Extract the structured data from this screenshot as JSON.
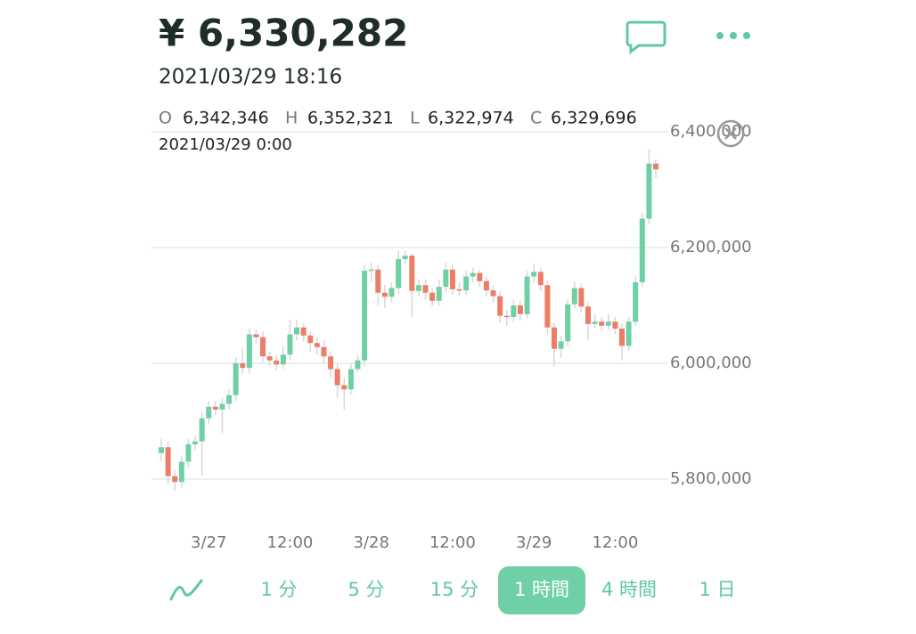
{
  "header": {
    "price": "¥ 6,330,282",
    "datetime": "2021/03/29 18:16"
  },
  "ohlc": {
    "o_label": "O",
    "o": "6,342,346",
    "h_label": "H",
    "h": "6,352,321",
    "l_label": "L",
    "l": "6,322,974",
    "c_label": "C",
    "c": "6,329,696",
    "time": "2021/03/29 0:00"
  },
  "tabs": {
    "items": [
      "1 分",
      "5 分",
      "15 分",
      "1 時間",
      "4 時間",
      "1 日"
    ],
    "selected": 3
  },
  "chart_data": {
    "type": "candlestick",
    "up_color": "#6fd0a6",
    "down_color": "#ec7d68",
    "ylim": [
      5800000,
      6400000
    ],
    "yticks": [
      {
        "value": 5800000,
        "label": "5,800,000"
      },
      {
        "value": 6000000,
        "label": "6,000,000"
      },
      {
        "value": 6200000,
        "label": "6,200,000"
      },
      {
        "value": 6400000,
        "label": "6,400,000"
      }
    ],
    "xlim": [
      0,
      73
    ],
    "xticks": [
      {
        "value": 7,
        "label": "3/27"
      },
      {
        "value": 19,
        "label": "12:00"
      },
      {
        "value": 31,
        "label": "3/28"
      },
      {
        "value": 43,
        "label": "12:00"
      },
      {
        "value": 55,
        "label": "3/29"
      },
      {
        "value": 67,
        "label": "12:00"
      }
    ],
    "grid": true,
    "candles": [
      [
        5845000,
        5870000,
        5830000,
        5855000
      ],
      [
        5855000,
        5865000,
        5790000,
        5805000
      ],
      [
        5805000,
        5815000,
        5780000,
        5795000
      ],
      [
        5795000,
        5840000,
        5785000,
        5830000
      ],
      [
        5830000,
        5870000,
        5820000,
        5860000
      ],
      [
        5860000,
        5875000,
        5850000,
        5865000
      ],
      [
        5865000,
        5915000,
        5805000,
        5905000
      ],
      [
        5905000,
        5935000,
        5895000,
        5925000
      ],
      [
        5925000,
        5935000,
        5910000,
        5920000
      ],
      [
        5920000,
        5940000,
        5880000,
        5930000
      ],
      [
        5930000,
        5955000,
        5920000,
        5945000
      ],
      [
        5945000,
        6010000,
        5935000,
        6000000
      ],
      [
        6000000,
        6025000,
        5982000,
        5992000
      ],
      [
        5992000,
        6060000,
        5982000,
        6050000
      ],
      [
        6050000,
        6058000,
        6035000,
        6045000
      ],
      [
        6045000,
        6055000,
        6002000,
        6012000
      ],
      [
        6012000,
        6020000,
        5995000,
        6005000
      ],
      [
        6005000,
        6015000,
        5988000,
        5998000
      ],
      [
        5998000,
        6030000,
        5990000,
        6015000
      ],
      [
        6015000,
        6075000,
        6005000,
        6050000
      ],
      [
        6050000,
        6075000,
        6040000,
        6062000
      ],
      [
        6062000,
        6070000,
        6038000,
        6048000
      ],
      [
        6048000,
        6055000,
        6020000,
        6035000
      ],
      [
        6035000,
        6045000,
        6015000,
        6028000
      ],
      [
        6028000,
        6040000,
        6000000,
        6012000
      ],
      [
        6012000,
        6020000,
        5975000,
        5990000
      ],
      [
        5990000,
        6000000,
        5940000,
        5962000
      ],
      [
        5962000,
        5975000,
        5920000,
        5955000
      ],
      [
        5955000,
        6000000,
        5945000,
        5990000
      ],
      [
        5990000,
        6015000,
        5985000,
        6005000
      ],
      [
        6005000,
        6170000,
        5995000,
        6160000
      ],
      [
        6160000,
        6175000,
        6140000,
        6162000
      ],
      [
        6162000,
        6170000,
        6100000,
        6122000
      ],
      [
        6122000,
        6135000,
        6095000,
        6115000
      ],
      [
        6115000,
        6140000,
        6105000,
        6130000
      ],
      [
        6130000,
        6195000,
        6120000,
        6180000
      ],
      [
        6180000,
        6195000,
        6170000,
        6186000
      ],
      [
        6186000,
        6190000,
        6080000,
        6125000
      ],
      [
        6125000,
        6145000,
        6115000,
        6135000
      ],
      [
        6135000,
        6145000,
        6110000,
        6122000
      ],
      [
        6122000,
        6130000,
        6098000,
        6108000
      ],
      [
        6108000,
        6145000,
        6100000,
        6132000
      ],
      [
        6132000,
        6175000,
        6122000,
        6162000
      ],
      [
        6162000,
        6170000,
        6118000,
        6128000
      ],
      [
        6128000,
        6140000,
        6116000,
        6126000
      ],
      [
        6126000,
        6160000,
        6118000,
        6150000
      ],
      [
        6150000,
        6165000,
        6140000,
        6156000
      ],
      [
        6156000,
        6162000,
        6132000,
        6142000
      ],
      [
        6142000,
        6150000,
        6116000,
        6126000
      ],
      [
        6126000,
        6135000,
        6105000,
        6116000
      ],
      [
        6116000,
        6125000,
        6070000,
        6082000
      ],
      [
        6082000,
        6092000,
        6065000,
        6080000
      ],
      [
        6080000,
        6110000,
        6072000,
        6100000
      ],
      [
        6100000,
        6108000,
        6075000,
        6085000
      ],
      [
        6085000,
        6160000,
        6078000,
        6150000
      ],
      [
        6150000,
        6172000,
        6140000,
        6158000
      ],
      [
        6158000,
        6165000,
        6125000,
        6135000
      ],
      [
        6135000,
        6142000,
        6050000,
        6062000
      ],
      [
        6062000,
        6070000,
        5995000,
        6025000
      ],
      [
        6025000,
        6048000,
        6010000,
        6038000
      ],
      [
        6038000,
        6110000,
        6030000,
        6102000
      ],
      [
        6102000,
        6140000,
        6095000,
        6130000
      ],
      [
        6130000,
        6138000,
        6088000,
        6098000
      ],
      [
        6098000,
        6105000,
        6040000,
        6068000
      ],
      [
        6068000,
        6085000,
        6060000,
        6072000
      ],
      [
        6072000,
        6080000,
        6055000,
        6065000
      ],
      [
        6065000,
        6085000,
        6058000,
        6072000
      ],
      [
        6072000,
        6080000,
        6050000,
        6060000
      ],
      [
        6060000,
        6068000,
        6005000,
        6030000
      ],
      [
        6030000,
        6080000,
        6022000,
        6072000
      ],
      [
        6072000,
        6150000,
        6065000,
        6140000
      ],
      [
        6140000,
        6260000,
        6132000,
        6250000
      ],
      [
        6250000,
        6370000,
        6240000,
        6345000
      ],
      [
        6345000,
        6352000,
        6320000,
        6335000
      ]
    ]
  }
}
